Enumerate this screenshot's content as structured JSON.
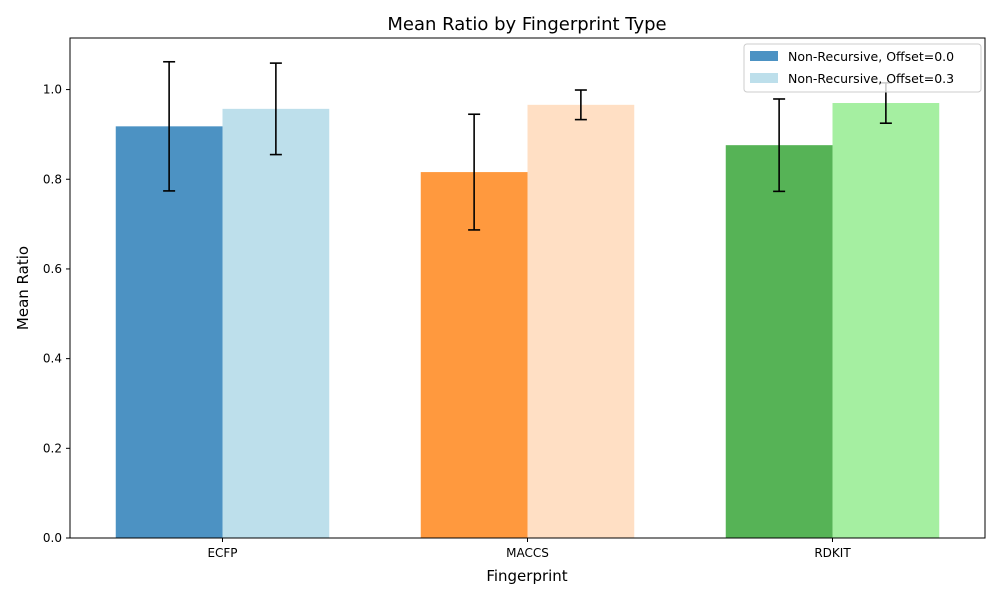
{
  "chart_data": {
    "type": "bar",
    "title": "Mean Ratio by Fingerprint Type",
    "xlabel": "Fingerprint",
    "ylabel": "Mean Ratio",
    "categories": [
      "ECFP",
      "MACCS",
      "RDKIT"
    ],
    "ylim": [
      0,
      1.115
    ],
    "yticks": [
      0.0,
      0.2,
      0.4,
      0.6,
      0.8,
      1.0
    ],
    "ytick_labels": [
      "0.0",
      "0.2",
      "0.4",
      "0.6",
      "0.8",
      "1.0"
    ],
    "grid": false,
    "legend_position": "top-right",
    "series": [
      {
        "name": "Non-Recursive, Offset=0.0",
        "values": [
          0.918,
          0.816,
          0.876
        ],
        "errors": [
          0.144,
          0.129,
          0.103
        ],
        "colors": [
          "#4c92c3",
          "#ff993e",
          "#56b356"
        ],
        "legend_color": "#4c92c3"
      },
      {
        "name": "Non-Recursive, Offset=0.3",
        "values": [
          0.957,
          0.966,
          0.97
        ],
        "errors": [
          0.102,
          0.033,
          0.045
        ],
        "colors": [
          "#bddfeb",
          "#ffdfc4",
          "#a5efa1"
        ],
        "legend_color": "#bddfeb"
      }
    ]
  }
}
